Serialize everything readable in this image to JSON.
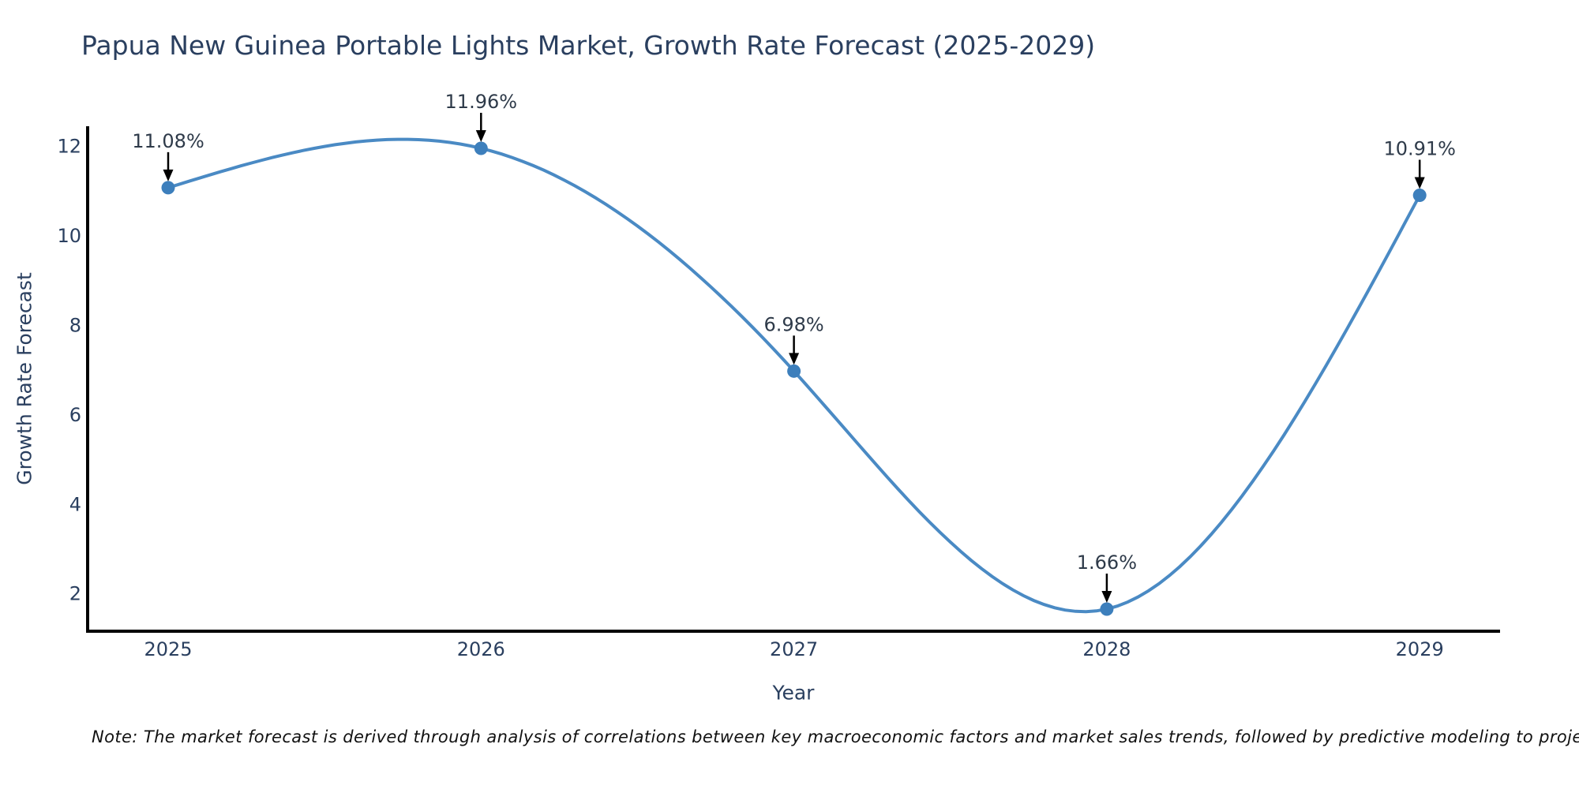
{
  "title": "Papua New Guinea Portable Lights Market, Growth Rate Forecast (2025-2029)",
  "note": "Note: The market forecast is derived through analysis of correlations between key macroeconomic factors and market sales trends, followed by predictive modeling to project future sales",
  "chart_data": {
    "type": "line",
    "title": "Papua New Guinea Portable Lights Market, Growth Rate Forecast (2025-2029)",
    "xlabel": "Year",
    "ylabel": "Growth Rate Forecast",
    "x": [
      2025,
      2026,
      2027,
      2028,
      2029
    ],
    "y": [
      11.08,
      11.96,
      6.98,
      1.66,
      10.91
    ],
    "point_labels": [
      "11.08%",
      "11.96%",
      "6.98%",
      "1.66%",
      "10.91%"
    ],
    "xticks": [
      "2025",
      "2026",
      "2027",
      "2028",
      "2029"
    ],
    "yticks": [
      2,
      4,
      6,
      8,
      10,
      12
    ],
    "ylim": [
      1.17,
      12.45
    ],
    "grid": false,
    "legend": null,
    "smooth": "natural-cubic-spline",
    "line_color": "#4a8ac4",
    "marker_color": "#3d7fbc",
    "axis_color": "#000000",
    "arrow_color": "#000000",
    "text_color": "#2a3f5f",
    "annotation_text_color": "#2e3a49"
  }
}
